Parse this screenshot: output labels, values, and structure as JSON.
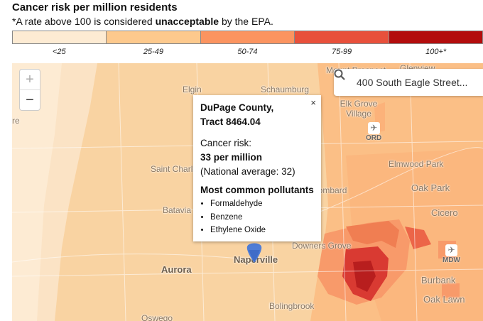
{
  "header": {
    "title": "Cancer risk per million residents",
    "subtitle_pre": "*A rate above 100 is considered ",
    "subtitle_bold": "unacceptable",
    "subtitle_post": " by the EPA."
  },
  "legend": [
    {
      "label": "<25",
      "color": "#fdebd3"
    },
    {
      "label": "25-49",
      "color": "#fdc98d"
    },
    {
      "label": "50-74",
      "color": "#fb9460"
    },
    {
      "label": "75-99",
      "color": "#e8503b"
    },
    {
      "label": "100+*",
      "color": "#b30d0d"
    }
  ],
  "map": {
    "zoom_in": "+",
    "zoom_out": "−",
    "search_value": "400 South Eagle Street...",
    "places": [
      {
        "id": "elgin",
        "name": "Elgin"
      },
      {
        "id": "schaumburg",
        "name": "Schaumburg"
      },
      {
        "id": "mount-prospect",
        "name": "Mount Prospect"
      },
      {
        "id": "glenview",
        "name": "Glenview"
      },
      {
        "id": "elk-grove-village",
        "name": "Elk Grove Village"
      },
      {
        "id": "elmwood-park",
        "name": "Elmwood Park"
      },
      {
        "id": "oak-park",
        "name": "Oak Park"
      },
      {
        "id": "cicero",
        "name": "Cicero"
      },
      {
        "id": "lombard",
        "name": "Lombard"
      },
      {
        "id": "saint-charles",
        "name": "Saint Charles"
      },
      {
        "id": "batavia",
        "name": "Batavia"
      },
      {
        "id": "downers-grove",
        "name": "Downers Grove"
      },
      {
        "id": "aurora",
        "name": "Aurora"
      },
      {
        "id": "naperville",
        "name": "Naperville"
      },
      {
        "id": "bolingbrook",
        "name": "Bolingbrook"
      },
      {
        "id": "burbank",
        "name": "Burbank"
      },
      {
        "id": "oak-lawn",
        "name": "Oak Lawn"
      },
      {
        "id": "oswego",
        "name": "Oswego"
      },
      {
        "id": "west-edge",
        "name": "re"
      }
    ],
    "airports": [
      {
        "id": "ord",
        "code": "ORD"
      },
      {
        "id": "mdw",
        "code": "MDW"
      }
    ]
  },
  "popup": {
    "close": "×",
    "heading_line1": "DuPage County,",
    "heading_line2": "Tract 8464.04",
    "risk_label": "Cancer risk:",
    "risk_value": "33 per million",
    "national_avg": "(National average: 32)",
    "pollutants_heading": "Most common pollutants",
    "pollutants": [
      "Formaldehyde",
      "Benzene",
      "Ethylene Oxide"
    ]
  }
}
